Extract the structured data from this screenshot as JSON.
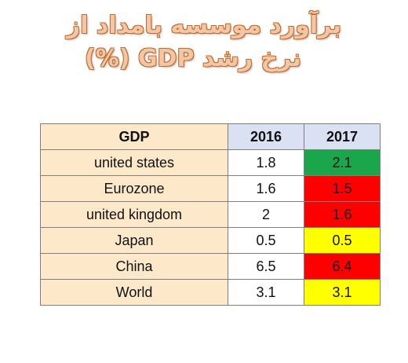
{
  "title": {
    "line1": "برآورد موسسه بامداد از",
    "line2": "نرخ رشد GDP (%)"
  },
  "table": {
    "headers": [
      "GDP",
      "2016",
      "2017"
    ],
    "rows": [
      {
        "label": "united states",
        "v2016": "1.8",
        "v2017": "2.1",
        "color2017": "#1aa64b"
      },
      {
        "label": "Eurozone",
        "v2016": "1.6",
        "v2017": "1.5",
        "color2017": "#ff0000"
      },
      {
        "label": "united kingdom",
        "v2016": "2",
        "v2017": "1.6",
        "color2017": "#ff0000"
      },
      {
        "label": "Japan",
        "v2016": "0.5",
        "v2017": "0.5",
        "color2017": "#ffff00"
      },
      {
        "label": "China",
        "v2016": "6.5",
        "v2017": "6.4",
        "color2017": "#ff0000"
      },
      {
        "label": "World",
        "v2016": "3.1",
        "v2017": "3.1",
        "color2017": "#ffff00"
      }
    ]
  }
}
